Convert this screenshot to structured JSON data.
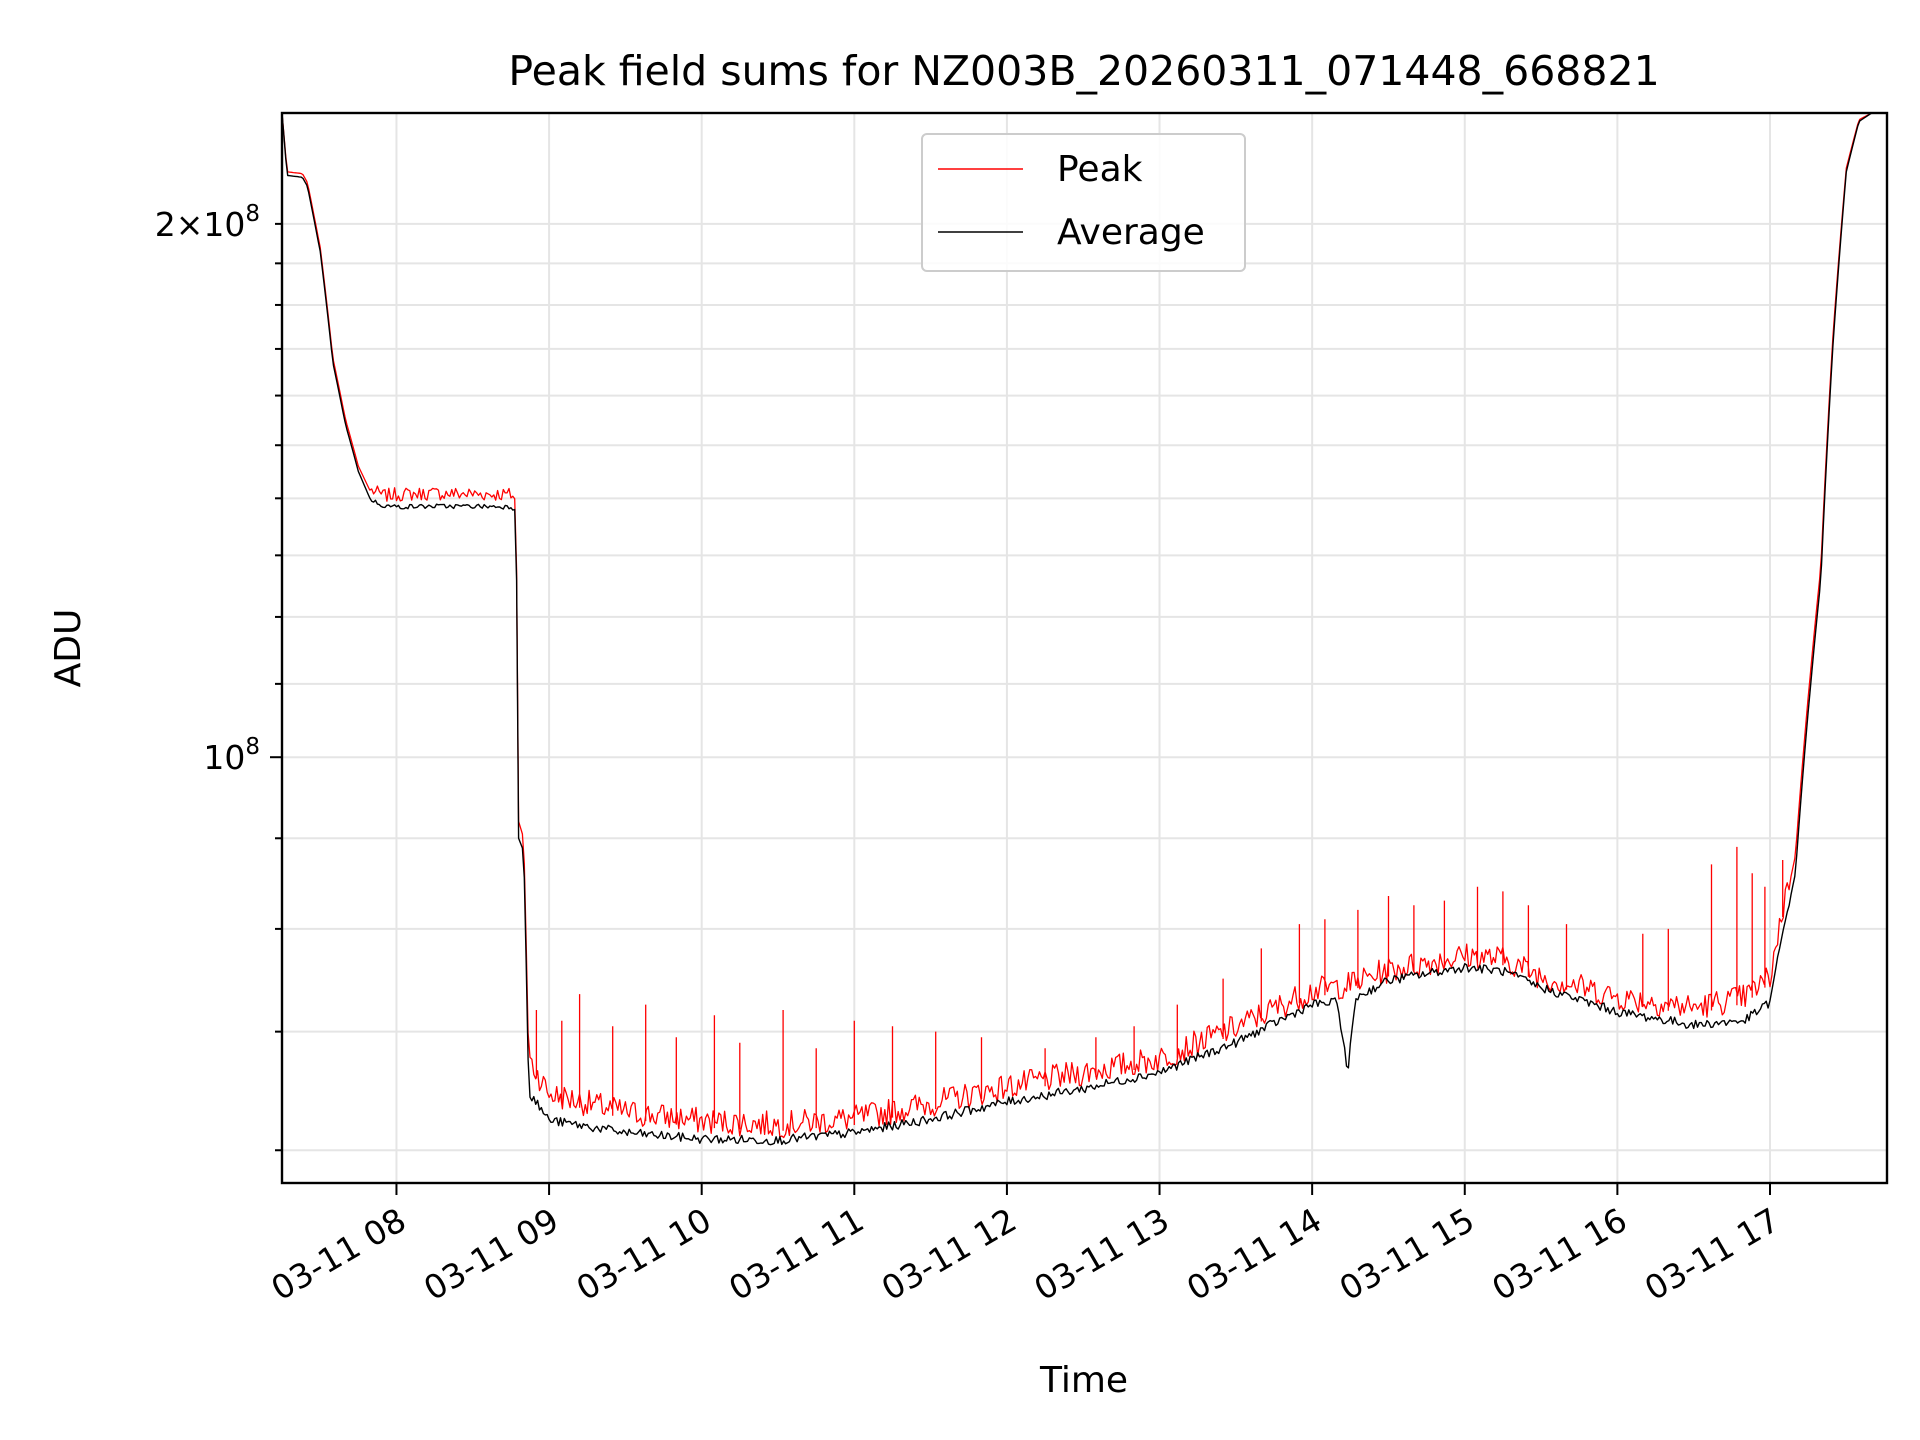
{
  "chart_data": {
    "type": "line",
    "title": "Peak field sums for NZ003B_20260311_071448_668821",
    "xlabel": "Time",
    "ylabel": "ADU",
    "x_axis": "time (2026-03-11)",
    "x_ticks": [
      "03-11 08",
      "03-11 09",
      "03-11 10",
      "03-11 11",
      "03-11 12",
      "03-11 13",
      "03-11 14",
      "03-11 15",
      "03-11 16",
      "03-11 17"
    ],
    "x_range": [
      "2026-03-11 07:15",
      "2026-03-11 17:46"
    ],
    "y_scale": "log",
    "y_range": [
      57500000,
      231000000
    ],
    "y_tick_labels": {
      "major": [
        {
          "value": 100000000,
          "base": "10",
          "exp": "8"
        }
      ],
      "minor": [
        {
          "value": 200000000,
          "mant": "2",
          "base": "10",
          "exp": "8"
        }
      ]
    },
    "grid": true,
    "legend_position": "upper center",
    "series": [
      {
        "name": "Peak",
        "color": "#ff0000",
        "points": [
          [
            "07:15",
            231000000
          ],
          [
            "07:17",
            214000000
          ],
          [
            "07:23",
            213500000
          ],
          [
            "07:25",
            211000000
          ],
          [
            "07:30",
            194000000
          ],
          [
            "07:35",
            168000000
          ],
          [
            "07:40",
            155000000
          ],
          [
            "07:45",
            146000000
          ],
          [
            "07:50",
            141000000
          ],
          [
            "07:55",
            140000000
          ],
          [
            "08:00",
            140200000
          ],
          [
            "08:15",
            140400000
          ],
          [
            "08:30",
            140300000
          ],
          [
            "08:45",
            140200000
          ],
          [
            "08:47",
            139500000
          ],
          [
            "08:48",
            92000000
          ],
          [
            "08:50",
            90000000
          ],
          [
            "08:52",
            67000000
          ],
          [
            "09:00",
            64000000
          ],
          [
            "09:30",
            62500000
          ],
          [
            "10:00",
            61800000
          ],
          [
            "10:30",
            61500000
          ],
          [
            "11:00",
            62000000
          ],
          [
            "11:30",
            63200000
          ],
          [
            "12:00",
            64600000
          ],
          [
            "12:30",
            65800000
          ],
          [
            "13:00",
            67000000
          ],
          [
            "13:30",
            69800000
          ],
          [
            "14:00",
            73200000
          ],
          [
            "14:15",
            73800000
          ],
          [
            "14:30",
            75200000
          ],
          [
            "15:00",
            76600000
          ],
          [
            "15:15",
            76300000
          ],
          [
            "15:30",
            74600000
          ],
          [
            "16:00",
            72600000
          ],
          [
            "16:30",
            71600000
          ],
          [
            "16:50",
            72600000
          ],
          [
            "17:00",
            74500000
          ],
          [
            "17:10",
            88000000
          ],
          [
            "17:20",
            128000000
          ],
          [
            "17:25",
            175000000
          ],
          [
            "17:30",
            215000000
          ],
          [
            "17:35",
            229000000
          ],
          [
            "17:40",
            231000000
          ],
          [
            "17:46",
            231000000
          ]
        ],
        "spikes": [
          [
            "08:55",
            72000000
          ],
          [
            "09:05",
            71000000
          ],
          [
            "09:12",
            73500000
          ],
          [
            "09:25",
            70500000
          ],
          [
            "09:38",
            72500000
          ],
          [
            "09:50",
            69500000
          ],
          [
            "10:05",
            71500000
          ],
          [
            "10:15",
            69000000
          ],
          [
            "10:32",
            72000000
          ],
          [
            "10:45",
            68500000
          ],
          [
            "11:00",
            71000000
          ],
          [
            "11:15",
            70500000
          ],
          [
            "11:32",
            70000000
          ],
          [
            "11:50",
            69500000
          ],
          [
            "12:15",
            68500000
          ],
          [
            "12:35",
            69500000
          ],
          [
            "12:50",
            70500000
          ],
          [
            "13:07",
            72500000
          ],
          [
            "13:25",
            75000000
          ],
          [
            "13:40",
            78000000
          ],
          [
            "13:55",
            80500000
          ],
          [
            "14:05",
            81000000
          ],
          [
            "14:18",
            82000000
          ],
          [
            "14:30",
            83500000
          ],
          [
            "14:40",
            82500000
          ],
          [
            "14:52",
            83000000
          ],
          [
            "15:05",
            84500000
          ],
          [
            "15:15",
            84000000
          ],
          [
            "15:25",
            82500000
          ],
          [
            "15:40",
            80500000
          ],
          [
            "16:10",
            79500000
          ],
          [
            "16:20",
            80000000
          ],
          [
            "16:37",
            87000000
          ],
          [
            "16:47",
            89000000
          ],
          [
            "16:53",
            86000000
          ],
          [
            "16:58",
            84500000
          ],
          [
            "17:05",
            87500000
          ]
        ]
      },
      {
        "name": "Average",
        "color": "#000000",
        "points": [
          [
            "07:15",
            231000000
          ],
          [
            "07:17",
            213000000
          ],
          [
            "07:23",
            212500000
          ],
          [
            "07:25",
            210000000
          ],
          [
            "07:30",
            193000000
          ],
          [
            "07:35",
            167000000
          ],
          [
            "07:40",
            154000000
          ],
          [
            "07:45",
            145000000
          ],
          [
            "07:50",
            139500000
          ],
          [
            "07:55",
            138500000
          ],
          [
            "08:00",
            138300000
          ],
          [
            "08:15",
            138400000
          ],
          [
            "08:30",
            138400000
          ],
          [
            "08:45",
            138300000
          ],
          [
            "08:47",
            137800000
          ],
          [
            "08:48",
            90000000
          ],
          [
            "08:50",
            88500000
          ],
          [
            "08:52",
            64500000
          ],
          [
            "09:00",
            62200000
          ],
          [
            "09:30",
            61200000
          ],
          [
            "10:00",
            60700000
          ],
          [
            "10:30",
            60600000
          ],
          [
            "11:00",
            61200000
          ],
          [
            "11:30",
            62300000
          ],
          [
            "12:00",
            63700000
          ],
          [
            "12:30",
            64800000
          ],
          [
            "13:00",
            66200000
          ],
          [
            "13:30",
            68800000
          ],
          [
            "14:00",
            72300000
          ],
          [
            "14:10",
            72500000
          ],
          [
            "14:14",
            66000000
          ],
          [
            "14:17",
            72900000
          ],
          [
            "14:30",
            74600000
          ],
          [
            "15:00",
            75900000
          ],
          [
            "15:15",
            75500000
          ],
          [
            "15:30",
            73900000
          ],
          [
            "16:00",
            71600000
          ],
          [
            "16:30",
            70400000
          ],
          [
            "16:50",
            70800000
          ],
          [
            "17:00",
            72500000
          ],
          [
            "17:10",
            86000000
          ],
          [
            "17:20",
            126000000
          ],
          [
            "17:25",
            173000000
          ],
          [
            "17:30",
            214000000
          ],
          [
            "17:35",
            228500000
          ],
          [
            "17:40",
            231000000
          ],
          [
            "17:46",
            231000000
          ]
        ]
      }
    ]
  }
}
